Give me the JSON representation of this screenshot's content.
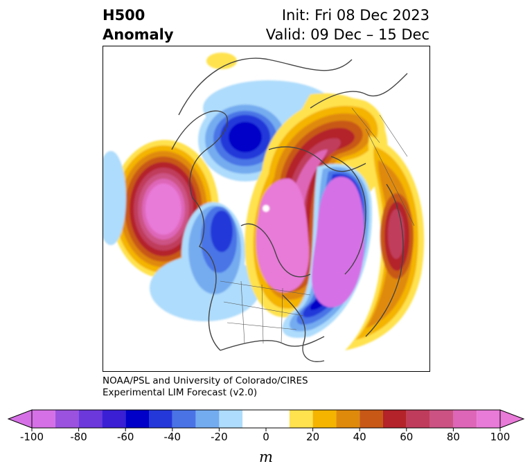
{
  "title_left": [
    "H500",
    "Anomaly"
  ],
  "title_right": [
    "Init: Fri 08 Dec 2023",
    "Valid: 09 Dec – 15 Dec"
  ],
  "credits": [
    "NOAA/PSL and University of Colorado/CIRES",
    "Experimental LIM Forecast (v2.0)"
  ],
  "colorbar": {
    "unit": "m",
    "ticks": [
      "-100",
      "-80",
      "-60",
      "-40",
      "-20",
      "0",
      "20",
      "40",
      "60",
      "80",
      "100"
    ],
    "bins": [
      -100,
      -90,
      -80,
      -70,
      -60,
      -50,
      -40,
      -30,
      -20,
      -10,
      10,
      20,
      30,
      40,
      50,
      60,
      70,
      80,
      90,
      100
    ],
    "colors": [
      "#d670e6",
      "#9b52de",
      "#6c38dc",
      "#3a1fd4",
      "#0000c8",
      "#2438d9",
      "#4a74e6",
      "#74acf0",
      "#aedcfc",
      "#ffffff",
      "#ffe24e",
      "#f4b400",
      "#e08a0c",
      "#c85816",
      "#b4222a",
      "#c03c5c",
      "#cc5284",
      "#de66b8",
      "#e87ad8"
    ],
    "extend_low_color": "#d670e6",
    "extend_high_color": "#e87ad8"
  }
}
